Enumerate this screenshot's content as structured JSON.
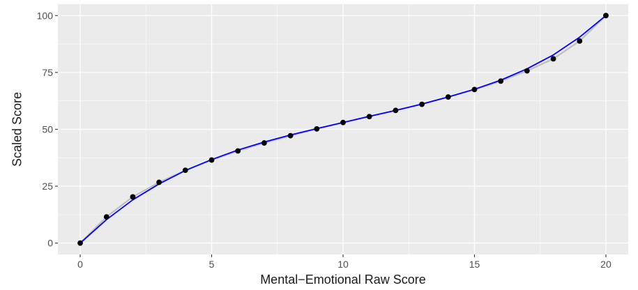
{
  "chart_data": {
    "type": "scatter",
    "title": "",
    "xlabel": "Mental−Emotional Raw Score",
    "ylabel": "Scaled Score",
    "xlim": [
      -0.85,
      20.85
    ],
    "ylim": [
      -5,
      105
    ],
    "x_ticks": [
      0,
      5,
      10,
      15,
      20
    ],
    "y_ticks": [
      0,
      25,
      50,
      75,
      100
    ],
    "grid": true,
    "background": "#ebebeb",
    "series": [
      {
        "kind": "points",
        "color": "#000000",
        "x": [
          0,
          1,
          2,
          3,
          4,
          5,
          6,
          7,
          8,
          9,
          10,
          11,
          12,
          13,
          14,
          15,
          16,
          17,
          18,
          19,
          20
        ],
        "y": [
          0,
          11.5,
          20.3,
          26.7,
          32.0,
          36.5,
          40.5,
          44.0,
          47.2,
          50.2,
          53.0,
          55.6,
          58.3,
          61.0,
          64.2,
          67.5,
          71.2,
          75.7,
          81.0,
          88.8,
          100
        ]
      },
      {
        "kind": "line",
        "color": "#bebebe",
        "x": [
          0,
          1,
          2,
          3,
          4,
          5,
          6,
          7,
          8,
          9,
          10,
          11,
          12,
          13,
          14,
          15,
          16,
          17,
          18,
          19,
          20
        ],
        "y": [
          0,
          11.5,
          20.3,
          26.7,
          32.0,
          36.5,
          40.5,
          44.0,
          47.2,
          50.2,
          53.0,
          55.6,
          58.3,
          61.0,
          64.2,
          67.5,
          71.2,
          75.7,
          81.0,
          88.8,
          100
        ]
      },
      {
        "kind": "line",
        "color": "#0000ff",
        "x": [
          0,
          1,
          2,
          3,
          4,
          5,
          6,
          7,
          8,
          9,
          10,
          11,
          12,
          13,
          14,
          15,
          16,
          17,
          18,
          19,
          20
        ],
        "y": [
          0,
          10.3,
          19.0,
          26.0,
          31.9,
          36.7,
          40.9,
          44.4,
          47.5,
          50.3,
          53.0,
          55.7,
          58.3,
          61.1,
          64.2,
          67.6,
          71.6,
          76.6,
          82.7,
          90.5,
          100
        ]
      }
    ]
  }
}
